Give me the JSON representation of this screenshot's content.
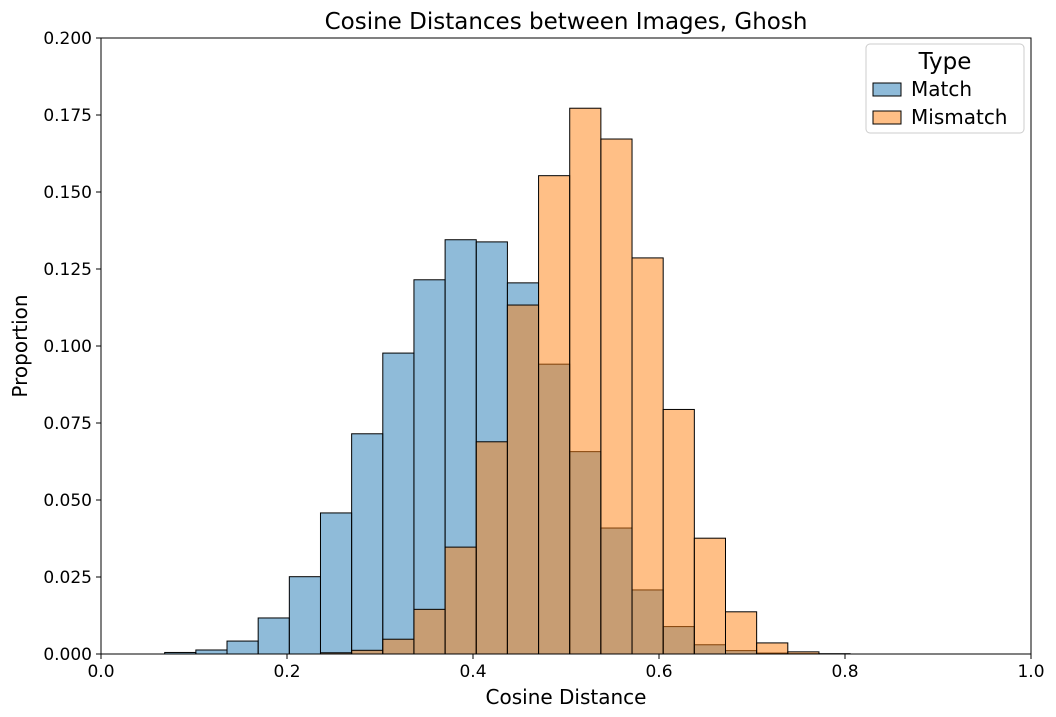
{
  "chart_data": {
    "type": "bar",
    "title": "Cosine Distances between Images, Ghosh",
    "xlabel": "Cosine Distance",
    "ylabel": "Proportion",
    "xlim": [
      0.0,
      1.0
    ],
    "ylim": [
      0.0,
      0.2
    ],
    "xticks": [
      "0.0",
      "0.2",
      "0.4",
      "0.6",
      "0.8",
      "1.0"
    ],
    "yticks": [
      "0.000",
      "0.025",
      "0.050",
      "0.075",
      "0.100",
      "0.125",
      "0.150",
      "0.175",
      "0.200"
    ],
    "bin_edges": [
      0.0685,
      0.102,
      0.1355,
      0.169,
      0.2025,
      0.236,
      0.2695,
      0.303,
      0.3365,
      0.37,
      0.4035,
      0.437,
      0.4705,
      0.504,
      0.5375,
      0.571,
      0.6045,
      0.638,
      0.6715,
      0.705,
      0.7385,
      0.772,
      0.8055,
      0.839
    ],
    "legend": {
      "title": "Type",
      "position": "upper right"
    },
    "grid": false,
    "series": [
      {
        "name": "Match",
        "color": "#1f77b4",
        "values": [
          0.0005,
          0.0013,
          0.0042,
          0.0117,
          0.0251,
          0.0458,
          0.0715,
          0.0977,
          0.1215,
          0.1345,
          0.1338,
          0.1205,
          0.0941,
          0.0657,
          0.0409,
          0.0208,
          0.0089,
          0.003,
          0.0011,
          0.0003,
          0.0001,
          0.0,
          0.0
        ]
      },
      {
        "name": "Mismatch",
        "color": "#ff7f0e",
        "values": [
          0.0,
          0.0,
          0.0,
          0.0,
          0.0,
          0.0004,
          0.0012,
          0.0048,
          0.0145,
          0.0347,
          0.0689,
          0.1133,
          0.1553,
          0.1772,
          0.1672,
          0.1286,
          0.0794,
          0.0376,
          0.0137,
          0.0036,
          0.0007,
          0.0001,
          0.0
        ]
      }
    ]
  }
}
